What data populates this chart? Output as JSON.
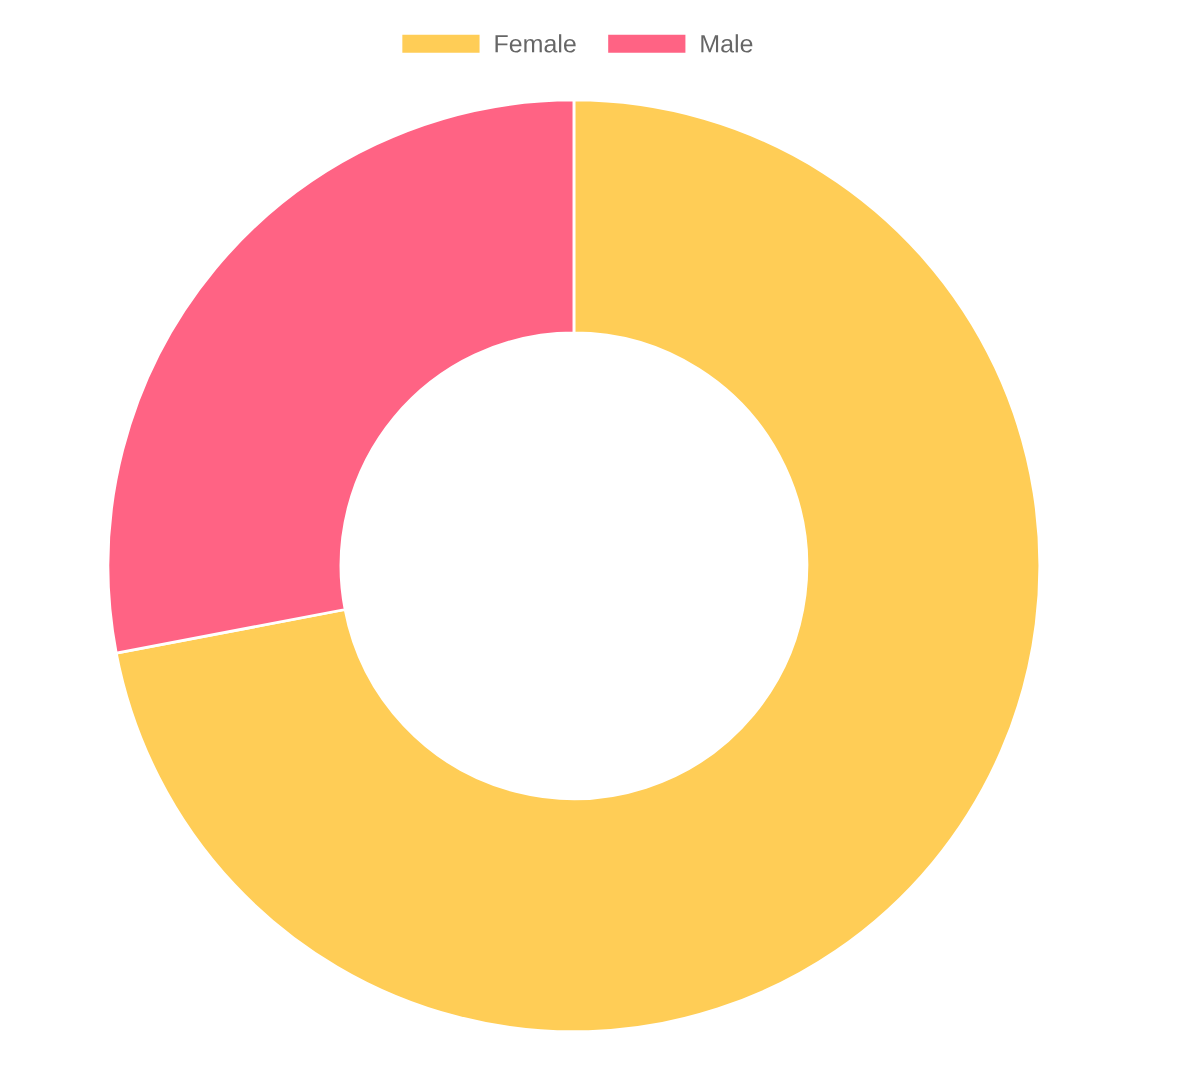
{
  "chart_data": {
    "type": "donut",
    "categories": [
      "Female",
      "Male"
    ],
    "values": [
      72,
      28
    ],
    "colors": [
      "#ffcd56",
      "#ff6384"
    ],
    "legend": "top"
  }
}
